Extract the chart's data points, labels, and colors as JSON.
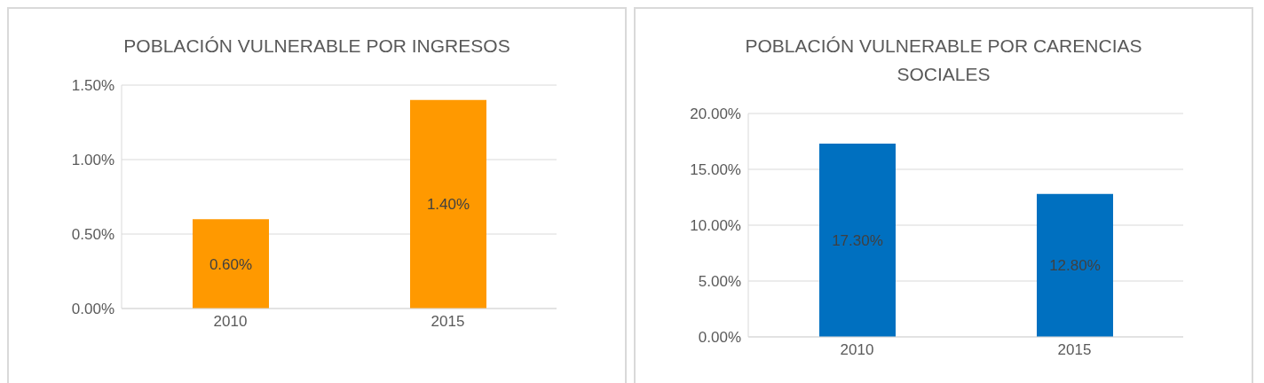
{
  "chart_data": [
    {
      "type": "bar",
      "title": "POBLACIÓN VULNERABLE POR INGRESOS",
      "categories": [
        "2010",
        "2015"
      ],
      "values": [
        0.6,
        1.4
      ],
      "color": "#ff9900",
      "value_labels": [
        "0.60%",
        "1.40%"
      ],
      "ylim": [
        0,
        1.5
      ],
      "yticks": [
        {
          "value": 0,
          "label": "0.00%"
        },
        {
          "value": 0.5,
          "label": "0.50%"
        },
        {
          "value": 1,
          "label": "1.00%"
        },
        {
          "value": 1.5,
          "label": "1.50%"
        }
      ],
      "grid": "y"
    },
    {
      "type": "bar",
      "title": "POBLACIÓN VULNERABLE POR CARENCIAS SOCIALES",
      "categories": [
        "2010",
        "2015"
      ],
      "values": [
        17.3,
        12.8
      ],
      "color": "#0070c0",
      "value_labels": [
        "17.30%",
        "12.80%"
      ],
      "ylim": [
        0,
        20
      ],
      "yticks": [
        {
          "value": 0,
          "label": "0.00%"
        },
        {
          "value": 5,
          "label": "5.00%"
        },
        {
          "value": 10,
          "label": "10.00%"
        },
        {
          "value": 15,
          "label": "15.00%"
        },
        {
          "value": 20,
          "label": "20.00%"
        }
      ],
      "grid": "y"
    }
  ]
}
